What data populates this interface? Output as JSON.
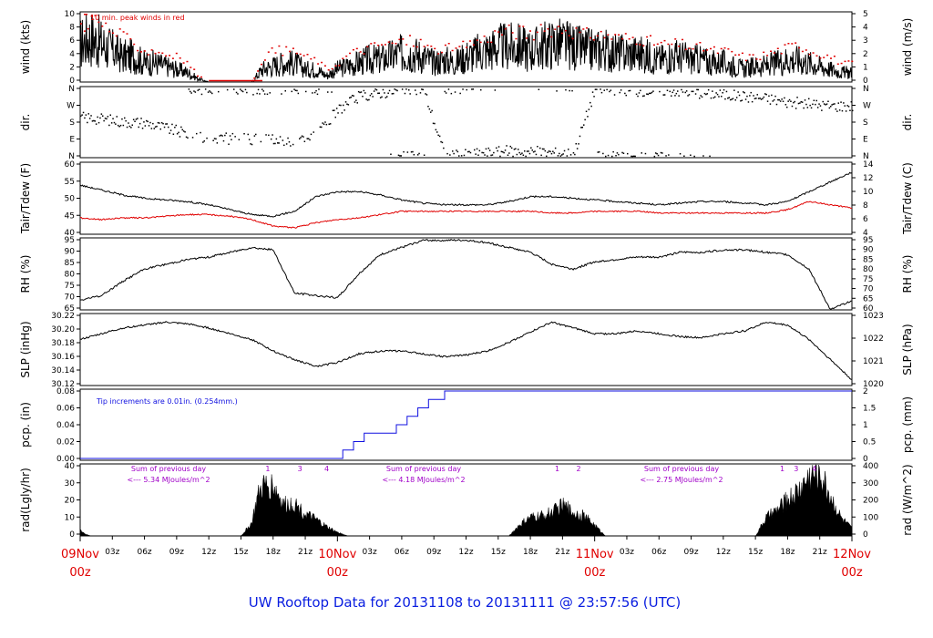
{
  "title": "UW Rooftop Data for 20131108  to  20131111 @ 23:57:56  (UTC)",
  "colors": {
    "red": "#e00000",
    "blue": "#1010e0",
    "purple": "#a000c8",
    "title": "#0a1ee0"
  },
  "x_axis": {
    "hour_labels": [
      "03z",
      "06z",
      "09z",
      "12z",
      "15z",
      "18z",
      "21z",
      "03z",
      "06z",
      "09z",
      "12z",
      "15z",
      "18z",
      "21z",
      "03z",
      "06z",
      "09z",
      "12z",
      "15z",
      "18z",
      "21z"
    ],
    "days": [
      {
        "date": "09Nov",
        "hour": "00z"
      },
      {
        "date": "10Nov",
        "hour": "00z"
      },
      {
        "date": "11Nov",
        "hour": "00z"
      },
      {
        "date": "12Nov",
        "hour": "00z"
      }
    ]
  },
  "panels": {
    "wind": {
      "left_label": "wind (kts)",
      "right_label": "wind (m/s)",
      "left_ticks": [
        "0",
        "2",
        "4",
        "6",
        "8",
        "10"
      ],
      "right_ticks": [
        "0",
        "1",
        "2",
        "3",
        "4",
        "5"
      ],
      "note": "10 min. peak winds in red"
    },
    "dir": {
      "left_label": "dir.",
      "right_label": "dir.",
      "left_ticks": [
        "N",
        "E",
        "S",
        "W",
        "N"
      ],
      "right_ticks": [
        "N",
        "E",
        "S",
        "W",
        "N"
      ]
    },
    "temp": {
      "left_label": "Tair/Tdew (F)",
      "right_label": "Tair/Tdew (C)",
      "left_ticks": [
        "40",
        "45",
        "50",
        "55",
        "60"
      ],
      "right_ticks": [
        "4",
        "6",
        "8",
        "10",
        "12",
        "14"
      ]
    },
    "rh": {
      "left_label": "RH (%)",
      "right_label": "RH (%)",
      "left_ticks": [
        "65",
        "70",
        "75",
        "80",
        "85",
        "90",
        "95"
      ],
      "right_ticks": [
        "60",
        "65",
        "70",
        "75",
        "80",
        "85",
        "90",
        "95"
      ]
    },
    "slp": {
      "left_label": "SLP (inHg)",
      "right_label": "SLP (hPa)",
      "left_ticks": [
        "30.12",
        "30.14",
        "30.16",
        "30.18",
        "30.20",
        "30.22"
      ],
      "right_ticks": [
        "1020",
        "1021",
        "1022",
        "1023"
      ]
    },
    "pcp": {
      "left_label": "pcp. (in)",
      "right_label": "pcp. (mm)",
      "left_ticks": [
        "0.00",
        "0.02",
        "0.04",
        "0.06",
        "0.08"
      ],
      "right_ticks": [
        "0",
        "0.5",
        "1",
        "1.5",
        "2"
      ],
      "note": "Tip increments are 0.01in. (0.254mm.)"
    },
    "rad": {
      "left_label": "rad(Lgly/hr)",
      "right_label": "rad (W/m^2)",
      "left_ticks": [
        "0",
        "10",
        "20",
        "30",
        "40"
      ],
      "right_ticks": [
        "0",
        "100",
        "200",
        "300",
        "400"
      ],
      "day_sums": [
        {
          "line1": "Sum of previous day",
          "line2": "<--- 5.34 MJoules/m^2"
        },
        {
          "line1": "Sum of previous day",
          "line2": "<--- 4.18 MJoules/m^2"
        },
        {
          "line1": "Sum of previous day",
          "line2": "<--- 2.75 MJoules/m^2"
        }
      ],
      "markers": [
        {
          "label": "1",
          "hour": 17.5
        },
        {
          "label": "3",
          "hour": 20.5
        },
        {
          "label": "4",
          "hour": 23
        },
        {
          "label": "1",
          "hour": 44.5
        },
        {
          "label": "2",
          "hour": 46.5
        },
        {
          "label": "1",
          "hour": 65.5
        },
        {
          "label": "3",
          "hour": 66.8
        },
        {
          "label": "4",
          "hour": 68.5
        }
      ]
    }
  },
  "chart_data": [
    {
      "type": "line",
      "title": "",
      "xlabel": "",
      "ylabel": "wind (kts)",
      "ylim": [
        0,
        11
      ],
      "x_hours": [
        0,
        1,
        2,
        3,
        4,
        5,
        6,
        7,
        8,
        9,
        10,
        11,
        12,
        13,
        14,
        15,
        16,
        17,
        18,
        19,
        20,
        21,
        22,
        23,
        24,
        25,
        26,
        27,
        28,
        29,
        30,
        31,
        32,
        33,
        34,
        35,
        36,
        37,
        38,
        39,
        40,
        41,
        42,
        43,
        44,
        45,
        46,
        47,
        48,
        49,
        50,
        51,
        52,
        53,
        54,
        55,
        56,
        57,
        58,
        59,
        60,
        61,
        62,
        63,
        64,
        65,
        66,
        67,
        68,
        69,
        70,
        71,
        72
      ],
      "series": [
        {
          "values": [
            6,
            7,
            6,
            5,
            4,
            4,
            3,
            3,
            2.5,
            2,
            1.5,
            0.5,
            0,
            0,
            0,
            0,
            0,
            2,
            2.5,
            3,
            3,
            2,
            2,
            1,
            2,
            2.5,
            3,
            3.5,
            3.5,
            4,
            4.5,
            4.5,
            4,
            3,
            3.5,
            3,
            4,
            4.5,
            5,
            5.5,
            5.5,
            5.5,
            5,
            5.5,
            6,
            6,
            5.5,
            5,
            5,
            5,
            4.5,
            4.5,
            4.5,
            4,
            3.5,
            4,
            4,
            3.5,
            3.5,
            3,
            3,
            2.5,
            2,
            2.5,
            2.5,
            3,
            3.5,
            3.5,
            3,
            2.5,
            2,
            1.5,
            1.5
          ]
        },
        {
          "values": [
            9,
            10,
            9,
            8,
            7,
            6,
            5,
            5,
            4.5,
            4,
            3,
            1,
            0,
            0,
            0,
            0,
            0,
            4,
            5,
            5,
            5,
            4,
            3.5,
            2,
            3,
            4.5,
            5,
            5.5,
            6,
            6,
            6.5,
            6.5,
            6,
            5,
            5.5,
            5,
            6,
            6.5,
            7,
            8,
            8,
            8,
            7.5,
            8,
            8.5,
            8.5,
            8,
            7.5,
            7.5,
            7.5,
            7,
            7,
            7,
            6.5,
            6,
            6,
            6,
            5.5,
            5.5,
            5,
            5,
            4.5,
            4,
            4,
            4.5,
            5,
            5.5,
            6,
            5,
            4.5,
            4,
            3,
            3
          ]
        }
      ]
    },
    {
      "type": "scatter",
      "title": "",
      "xlabel": "",
      "ylabel": "dir.",
      "ylim": [
        "N",
        "E",
        "S",
        "W",
        "N"
      ],
      "x_hours": [
        0,
        2,
        4,
        6,
        8,
        10,
        12,
        14,
        16,
        18,
        20,
        22,
        24,
        26,
        28,
        30,
        32,
        34,
        36,
        38,
        40,
        42,
        44,
        46,
        48,
        50,
        52,
        54,
        56,
        58,
        60,
        62,
        64,
        66,
        68,
        70,
        72
      ],
      "values_deg": [
        210,
        200,
        185,
        180,
        150,
        120,
        100,
        95,
        90,
        85,
        80,
        110,
        250,
        320,
        340,
        355,
        360,
        0,
        10,
        20,
        30,
        25,
        20,
        15,
        360,
        355,
        350,
        355,
        350,
        340,
        330,
        320,
        310,
        290,
        280,
        270,
        270
      ]
    },
    {
      "type": "line",
      "title": "",
      "xlabel": "",
      "ylabel": "Tair/Tdew (F)",
      "ylim": [
        38,
        60
      ],
      "x_hours": [
        0,
        2,
        4,
        6,
        8,
        10,
        12,
        14,
        16,
        18,
        20,
        22,
        24,
        26,
        28,
        30,
        32,
        34,
        36,
        38,
        40,
        42,
        44,
        46,
        48,
        50,
        52,
        54,
        56,
        58,
        60,
        62,
        64,
        66,
        68,
        70,
        72
      ],
      "series": [
        {
          "values": [
            53,
            51.5,
            50,
            49,
            48.5,
            48,
            47,
            45.5,
            44,
            43.5,
            45,
            49.5,
            51,
            51,
            50,
            48.5,
            47.5,
            47,
            47,
            47,
            48,
            49.5,
            49.5,
            49,
            48.5,
            48,
            47.5,
            47,
            47.5,
            48,
            48,
            47.5,
            47,
            48,
            51,
            54,
            57
          ]
        },
        {
          "values": [
            43,
            42.5,
            43,
            43,
            43.5,
            44,
            44,
            43.5,
            42.5,
            40.5,
            40,
            41.5,
            42.5,
            43,
            44,
            45,
            45,
            45,
            45,
            45,
            45,
            45,
            44.5,
            44.5,
            45,
            45,
            45,
            44.5,
            44.5,
            44.5,
            44.5,
            44.5,
            44.5,
            45.5,
            48,
            47,
            46
          ]
        }
      ]
    },
    {
      "type": "line",
      "title": "",
      "xlabel": "",
      "ylabel": "RH (%)",
      "ylim": [
        65,
        95
      ],
      "x_hours": [
        0,
        2,
        4,
        6,
        8,
        10,
        12,
        14,
        16,
        18,
        20,
        22,
        24,
        26,
        28,
        30,
        32,
        34,
        36,
        38,
        40,
        42,
        44,
        46,
        48,
        50,
        52,
        54,
        56,
        58,
        60,
        62,
        64,
        66,
        68,
        70,
        72
      ],
      "series": [
        {
          "values": [
            69,
            71,
            77,
            82,
            84,
            86,
            87,
            89,
            91,
            90,
            72,
            71,
            70,
            80,
            88,
            91,
            94,
            94,
            94,
            93,
            91,
            89,
            84,
            82,
            85,
            86,
            87,
            87,
            89,
            89,
            90,
            90,
            89,
            88,
            82,
            65,
            69
          ]
        }
      ]
    },
    {
      "type": "line",
      "title": "",
      "xlabel": "",
      "ylabel": "SLP (inHg)",
      "ylim": [
        30.11,
        30.235
      ],
      "x_hours": [
        0,
        2,
        4,
        6,
        8,
        10,
        12,
        14,
        16,
        18,
        20,
        22,
        24,
        26,
        28,
        30,
        32,
        34,
        36,
        38,
        40,
        42,
        44,
        46,
        48,
        50,
        52,
        54,
        56,
        58,
        60,
        62,
        64,
        66,
        68,
        70,
        72
      ],
      "series": [
        {
          "values": [
            30.19,
            30.2,
            30.21,
            30.215,
            30.22,
            30.217,
            30.21,
            30.2,
            30.19,
            30.17,
            30.155,
            30.143,
            30.15,
            30.165,
            30.17,
            30.17,
            30.165,
            30.16,
            30.163,
            30.17,
            30.185,
            30.203,
            30.22,
            30.21,
            30.2,
            30.2,
            30.205,
            30.2,
            30.195,
            30.193,
            30.2,
            30.205,
            30.22,
            30.215,
            30.19,
            30.155,
            30.12
          ]
        }
      ]
    },
    {
      "type": "line",
      "title": "",
      "xlabel": "",
      "ylabel": "pcp. (in)",
      "ylim": [
        0,
        0.08
      ],
      "x_hours": [
        0,
        24,
        24.5,
        25.5,
        26.5,
        28.5,
        29.5,
        30.5,
        31.5,
        32.5,
        34,
        72
      ],
      "series": [
        {
          "values": [
            0,
            0,
            0.01,
            0.02,
            0.03,
            0.03,
            0.04,
            0.05,
            0.06,
            0.07,
            0.08,
            0.08
          ]
        }
      ]
    },
    {
      "type": "area",
      "title": "",
      "xlabel": "",
      "ylabel": "rad(Lgly/hr)",
      "ylim": [
        0,
        40
      ],
      "x_hours": [
        0,
        0.5,
        1,
        15,
        16,
        16.5,
        17,
        18,
        19,
        20,
        21,
        22,
        23,
        24,
        25,
        40,
        41,
        42,
        43,
        44,
        45,
        46,
        47,
        48,
        49,
        63,
        64,
        65,
        66,
        67,
        68,
        69,
        70,
        71,
        72
      ],
      "series": [
        {
          "values": [
            3,
            1,
            0,
            0,
            7,
            20,
            27,
            28,
            17,
            18,
            12,
            9,
            5,
            2,
            0,
            0,
            6,
            10,
            11,
            13,
            17,
            13,
            11,
            6,
            0,
            0,
            10,
            14,
            20,
            25,
            33,
            35,
            22,
            10,
            4
          ]
        }
      ]
    }
  ]
}
